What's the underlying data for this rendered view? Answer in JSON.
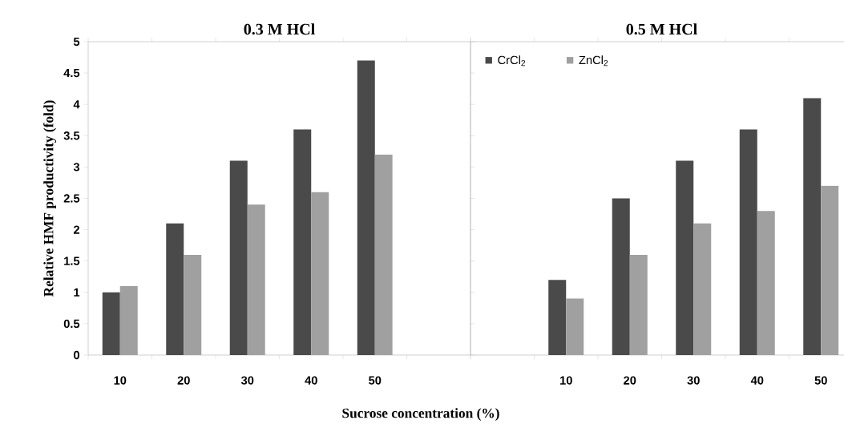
{
  "chart_data": [
    {
      "type": "bar",
      "title": "0.3 M HCl",
      "xlabel": "Sucrose concentration (%)",
      "ylabel": "Relative HMF productivity (fold)",
      "categories": [
        "10",
        "20",
        "30",
        "40",
        "50",
        null
      ],
      "series": [
        {
          "color": "#4a4a4a",
          "values": [
            1.0,
            2.1,
            3.1,
            3.6,
            4.7,
            null
          ]
        },
        {
          "color": "#a0a0a0",
          "values": [
            1.1,
            1.6,
            2.4,
            2.6,
            3.2,
            null
          ]
        }
      ],
      "ylim": [
        0,
        5
      ],
      "yticks": [
        0,
        0.5,
        1,
        1.5,
        2,
        2.5,
        3,
        3.5,
        4,
        4.5,
        5
      ],
      "grid": false,
      "legend": false
    },
    {
      "type": "bar",
      "title": "0.5 M HCl",
      "categories": [
        null,
        "10",
        "20",
        "30",
        "40",
        "50"
      ],
      "series": [
        {
          "name": "CrCl$_{2}$",
          "color": "#4a4a4a",
          "values": [
            null,
            1.2,
            2.5,
            3.1,
            3.6,
            4.1
          ]
        },
        {
          "name": "ZnCl$_{2}$",
          "color": "#a0a0a0",
          "values": [
            null,
            0.9,
            1.6,
            2.1,
            2.3,
            2.7
          ]
        }
      ],
      "ylim": [
        0,
        5
      ],
      "yticks": [
        0,
        0.5,
        1,
        1.5,
        2,
        2.5,
        3,
        3.5,
        4,
        4.5,
        5
      ],
      "tick_labels": "x",
      "grid": false,
      "legend": "top left"
    }
  ]
}
